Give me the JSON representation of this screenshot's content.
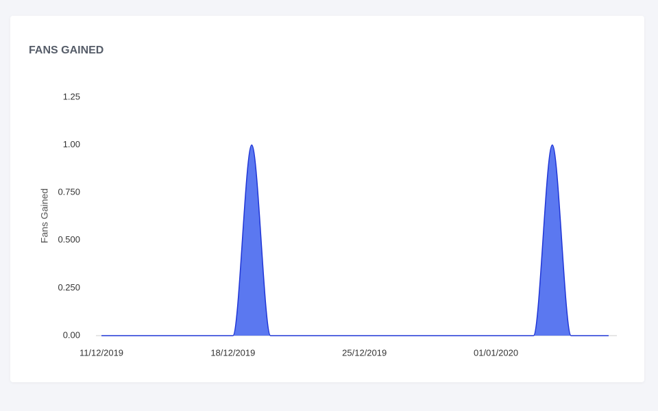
{
  "chart_data": {
    "type": "area",
    "title": "FANS GAINED",
    "y_label": "Fans Gained",
    "x": [
      "11/12/2019",
      "12/12/2019",
      "13/12/2019",
      "14/12/2019",
      "15/12/2019",
      "16/12/2019",
      "17/12/2019",
      "18/12/2019",
      "19/12/2019",
      "20/12/2019",
      "21/12/2019",
      "22/12/2019",
      "23/12/2019",
      "24/12/2019",
      "25/12/2019",
      "26/12/2019",
      "27/12/2019",
      "28/12/2019",
      "29/12/2019",
      "30/12/2019",
      "31/12/2019",
      "01/01/2020",
      "02/01/2020",
      "03/01/2020",
      "04/01/2020",
      "05/01/2020",
      "06/01/2020",
      "07/01/2020"
    ],
    "values": [
      0,
      0,
      0,
      0,
      0,
      0,
      0,
      0,
      1,
      0,
      0,
      0,
      0,
      0,
      0,
      0,
      0,
      0,
      0,
      0,
      0,
      0,
      0,
      0,
      1,
      0,
      0,
      0
    ],
    "color": "#5b78f0",
    "line_color": "#1f35d6",
    "xlim": [
      "11/12/2019",
      "07/01/2020"
    ],
    "xticks": [
      "11/12/2019",
      "18/12/2019",
      "25/12/2019",
      "01/01/2020"
    ],
    "ylim": [
      0,
      1.25
    ],
    "yticks": [
      {
        "value": 0,
        "label": "0.00"
      },
      {
        "value": 0.25,
        "label": "0.250"
      },
      {
        "value": 0.5,
        "label": "0.500"
      },
      {
        "value": 0.75,
        "label": "0.750"
      },
      {
        "value": 1,
        "label": "1.00"
      },
      1.25
    ],
    "grid": false
  }
}
